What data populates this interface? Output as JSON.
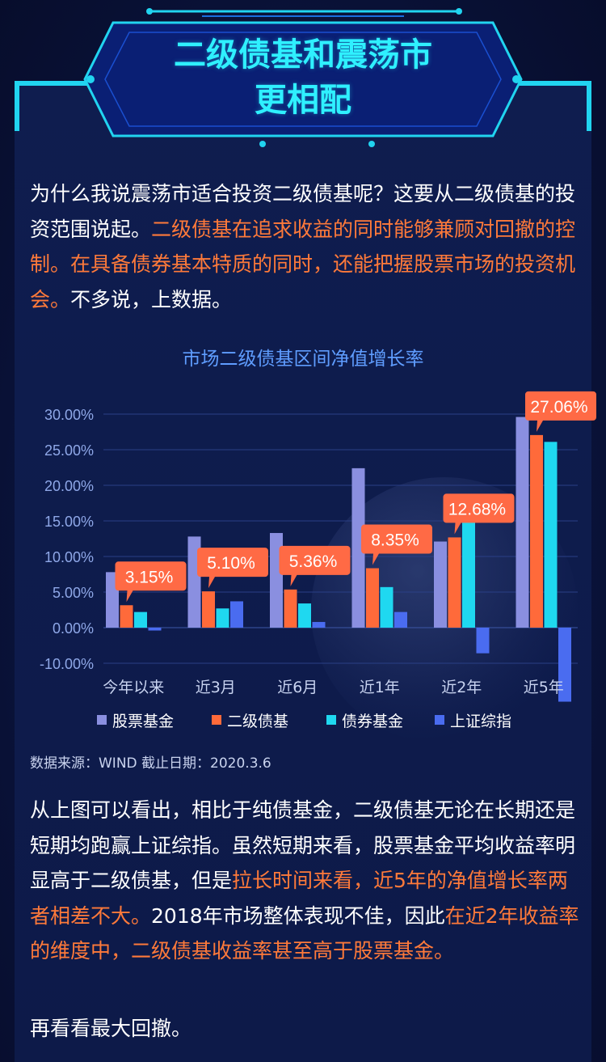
{
  "header": {
    "title_line1": "二级债基和震荡市",
    "title_line2": "更相配"
  },
  "intro": {
    "normal1": "为什么我说震荡市适合投资二级债基呢？这要从二级债基的投资范围说起。",
    "highlight1": "二级债基在追求收益的同时能够兼顾对回撤的控制。在具备债券基本特质的同时，还能把握股票市场的投资机会。",
    "normal2": "不多说，上数据。"
  },
  "chart_data": {
    "type": "bar",
    "title": "市场二级债基区间净值增长率",
    "categories": [
      "今年以来",
      "近3月",
      "近6月",
      "近1年",
      "近2年",
      "近5年"
    ],
    "series": [
      {
        "name": "股票基金",
        "values": [
          7.8,
          12.8,
          13.3,
          22.4,
          12.1,
          29.6
        ],
        "color": "#8a8fe0"
      },
      {
        "name": "二级债基",
        "values": [
          3.15,
          5.1,
          5.36,
          8.35,
          12.68,
          27.06
        ],
        "color": "#ff6a3a"
      },
      {
        "name": "债券基金",
        "values": [
          2.2,
          2.7,
          3.4,
          5.7,
          15.8,
          26.1
        ],
        "color": "#1fd8f0"
      },
      {
        "name": "上证综指",
        "values": [
          -0.4,
          3.7,
          0.8,
          2.2,
          -3.6,
          -10.4
        ],
        "color": "#4a6cf0"
      }
    ],
    "data_labels": [
      "3.15%",
      "5.10%",
      "5.36%",
      "8.35%",
      "12.68%",
      "27.06%"
    ],
    "y_ticks": [
      "30.00%",
      "25.00%",
      "20.00%",
      "15.00%",
      "10.00%",
      "5.00%",
      "0.00%",
      "-10.00%"
    ],
    "ylim": [
      -10,
      30
    ],
    "grid": true,
    "legend_position": "bottom"
  },
  "source": "数据来源：WIND  截止日期：2020.3.6",
  "analysis": {
    "normal1": "从上图可以看出，相比于纯债基金，二级债基无论在长期还是短期均跑赢上证综指。虽然短期来看，股票基金平均收益率明显高于二级债基，但是",
    "highlight1": "拉长时间来看，近5年的净值增长率两者相差不大。",
    "normal2": "2018年市场整体表现不佳，因此",
    "highlight2": "在近2年收益率的维度中，二级债基收益率甚至高于股票基金。"
  },
  "closing": "再看看最大回撤。",
  "colors": {
    "accent_cyan": "#21d4f0",
    "highlight_orange": "#ff7a3a",
    "background": "#0d1a49"
  }
}
